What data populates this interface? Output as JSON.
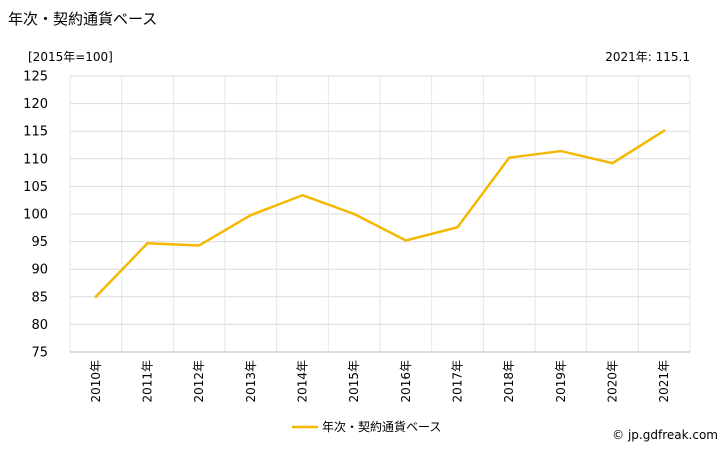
{
  "header": {
    "title": "年次・契約通貨ベース",
    "unit": "[2015年=100]",
    "latest_value": "2021年: 115.1"
  },
  "footer": {
    "credit": "© jp.gdfreak.com"
  },
  "chart_data": {
    "type": "line",
    "title": "年次・契約通貨ベース",
    "xlabel": "",
    "ylabel": "",
    "ylim": [
      75,
      125
    ],
    "yticks": [
      75,
      80,
      85,
      90,
      95,
      100,
      105,
      110,
      115,
      120,
      125
    ],
    "categories": [
      "2010年",
      "2011年",
      "2012年",
      "2013年",
      "2014年",
      "2015年",
      "2016年",
      "2017年",
      "2018年",
      "2019年",
      "2020年",
      "2021年"
    ],
    "series": [
      {
        "name": "年次・契約通貨ベース",
        "color": "#f5b800",
        "values": [
          85.0,
          94.7,
          94.3,
          99.8,
          103.4,
          100.0,
          95.2,
          97.6,
          110.2,
          111.4,
          109.2,
          115.1
        ]
      }
    ],
    "grid": true,
    "legend": "bottom-center"
  }
}
